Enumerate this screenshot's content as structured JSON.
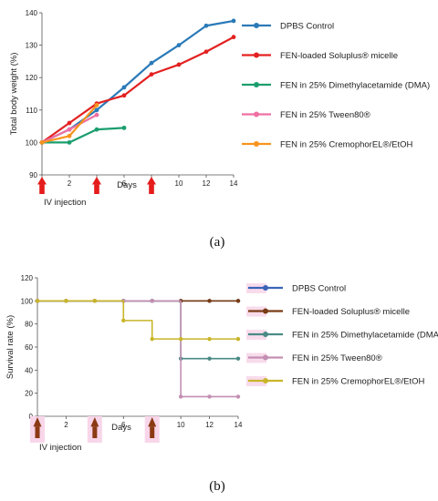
{
  "chart_data": [
    {
      "type": "line",
      "panel_label": "(a)",
      "ylabel": "Total body weight (%)",
      "xlabel": "Days",
      "annotation": "IV injection",
      "injection_days": [
        0,
        4,
        8
      ],
      "xlim": [
        0,
        14
      ],
      "ylim": [
        90,
        140
      ],
      "x_ticks": [
        "0",
        "2",
        "4",
        "6",
        "8",
        "10",
        "12",
        "14"
      ],
      "y_ticks": [
        "90",
        "100",
        "110",
        "120",
        "130",
        "140"
      ],
      "legend_position": "right",
      "series": [
        {
          "name": "DPBS Control",
          "color": "#2a7ab8",
          "x": [
            0,
            2,
            4,
            6,
            8,
            10,
            12,
            14
          ],
          "y": [
            100,
            104,
            110,
            117,
            124.5,
            130,
            136,
            137.5
          ]
        },
        {
          "name": "FEN-loaded Soluplus® micelle",
          "color": "#e32121",
          "x": [
            0,
            2,
            4,
            6,
            8,
            10,
            12,
            14
          ],
          "y": [
            100,
            106,
            112,
            114.5,
            121,
            124,
            128,
            132.5
          ]
        },
        {
          "name": "FEN in 25%  Dimethylacetamide (DMA)",
          "color": "#1a9e6e",
          "x": [
            0,
            2,
            4,
            6
          ],
          "y": [
            100,
            100,
            104,
            104.5
          ]
        },
        {
          "name": "FEN in 25%  Tween80®",
          "color": "#ef6fa3",
          "x": [
            0,
            2,
            4
          ],
          "y": [
            100,
            104,
            108.5
          ]
        },
        {
          "name": "FEN in 25%  CremophorEL®/EtOH",
          "color": "#f7941d",
          "x": [
            0,
            2,
            4
          ],
          "y": [
            100,
            102,
            111.5
          ]
        }
      ]
    },
    {
      "type": "line",
      "panel_label": "(b)",
      "ylabel": "Survival rate (%)",
      "xlabel": "Days",
      "annotation": "IV injection",
      "injection_days": [
        0,
        4,
        8
      ],
      "xlim": [
        0,
        14
      ],
      "ylim": [
        0,
        120
      ],
      "x_ticks": [
        "0",
        "2",
        "4",
        "6",
        "8",
        "10",
        "12",
        "14"
      ],
      "y_ticks": [
        "0",
        "20",
        "40",
        "60",
        "80",
        "100",
        "120"
      ],
      "legend_position": "right",
      "step": true,
      "series": [
        {
          "name": "DPBS Control",
          "color": "#3b63b8",
          "x": [
            0,
            2,
            4,
            6,
            8,
            10,
            12,
            14
          ],
          "y": [
            100,
            100,
            100,
            100,
            100,
            100,
            100,
            100
          ]
        },
        {
          "name": "FEN-loaded Soluplus® micelle",
          "color": "#7a3c14",
          "x": [
            0,
            2,
            4,
            6,
            8,
            10,
            12,
            14
          ],
          "y": [
            100,
            100,
            100,
            100,
            100,
            100,
            100,
            100
          ]
        },
        {
          "name": "FEN in 25%  Dimethylacetamide (DMA)",
          "color": "#4a8a86",
          "x": [
            0,
            2,
            4,
            6,
            8,
            10,
            12,
            14
          ],
          "y": [
            100,
            100,
            100,
            100,
            100,
            50,
            50,
            50
          ]
        },
        {
          "name": "FEN in 25% Tween80®",
          "color": "#c48fb2",
          "x": [
            0,
            2,
            4,
            6,
            8,
            10,
            12,
            14
          ],
          "y": [
            100,
            100,
            100,
            100,
            100,
            17,
            17,
            17
          ]
        },
        {
          "name": "FEN in 25% CremophorEL®/EtOH",
          "color": "#c9b52a",
          "x": [
            0,
            2,
            4,
            6,
            8,
            10,
            12,
            14
          ],
          "y": [
            100,
            100,
            100,
            83,
            67,
            67,
            67,
            67
          ]
        }
      ]
    }
  ]
}
